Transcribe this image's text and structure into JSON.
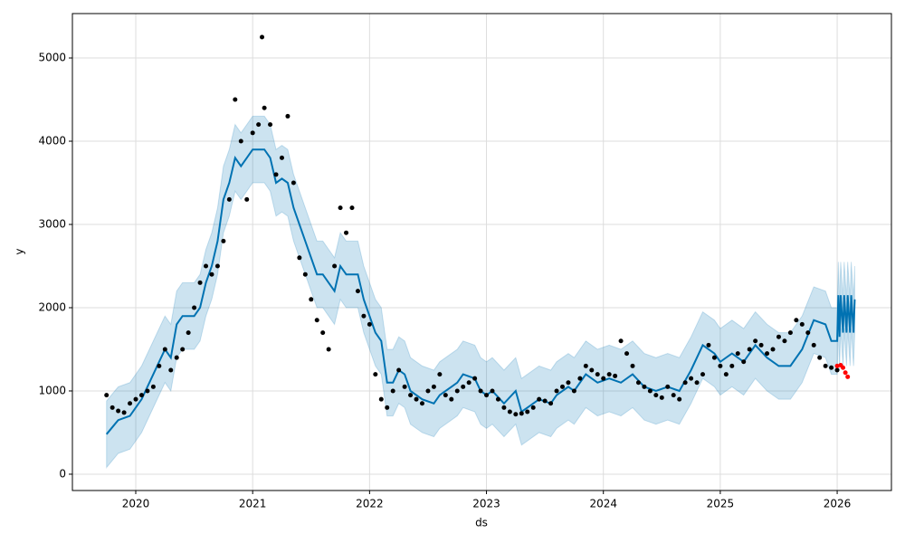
{
  "chart_data": {
    "type": "forecast",
    "x_label": "ds",
    "y_label": "y",
    "xlim": [
      2019.458,
      2026.464
    ],
    "ylim": [
      -196,
      5533
    ],
    "xticks": [
      2020,
      2021,
      2022,
      2023,
      2024,
      2025,
      2026
    ],
    "yticks": [
      0,
      1000,
      2000,
      3000,
      4000,
      5000
    ],
    "grid": true,
    "series": [
      {
        "style": "points",
        "color": "#000000",
        "x": [
          2019.75,
          2019.8,
          2019.85,
          2019.9,
          2019.95,
          2020.0,
          2020.05,
          2020.1,
          2020.15,
          2020.2,
          2020.25,
          2020.3,
          2020.35,
          2020.4,
          2020.45,
          2020.5,
          2020.55,
          2020.6,
          2020.65,
          2020.7,
          2020.75,
          2020.8,
          2020.85,
          2020.9,
          2020.95,
          2021.0,
          2021.05,
          2021.08,
          2021.1,
          2021.15,
          2021.2,
          2021.25,
          2021.3,
          2021.35,
          2021.4,
          2021.45,
          2021.5,
          2021.55,
          2021.6,
          2021.65,
          2021.7,
          2021.75,
          2021.8,
          2021.85,
          2021.9,
          2021.95,
          2022.0,
          2022.05,
          2022.1,
          2022.15,
          2022.2,
          2022.25,
          2022.3,
          2022.35,
          2022.4,
          2022.45,
          2022.5,
          2022.55,
          2022.6,
          2022.65,
          2022.7,
          2022.75,
          2022.8,
          2022.85,
          2022.9,
          2022.95,
          2023.0,
          2023.05,
          2023.1,
          2023.15,
          2023.2,
          2023.25,
          2023.3,
          2023.35,
          2023.4,
          2023.45,
          2023.5,
          2023.55,
          2023.6,
          2023.65,
          2023.7,
          2023.75,
          2023.8,
          2023.85,
          2023.9,
          2023.95,
          2024.0,
          2024.05,
          2024.1,
          2024.15,
          2024.2,
          2024.25,
          2024.3,
          2024.35,
          2024.4,
          2024.45,
          2024.5,
          2024.55,
          2024.6,
          2024.65,
          2024.7,
          2024.75,
          2024.8,
          2024.85,
          2024.9,
          2024.95,
          2025.0,
          2025.05,
          2025.1,
          2025.15,
          2025.2,
          2025.25,
          2025.3,
          2025.35,
          2025.4,
          2025.45,
          2025.5,
          2025.55,
          2025.6,
          2025.65,
          2025.7,
          2025.75,
          2025.8,
          2025.85,
          2025.9,
          2025.95,
          2026.0
        ],
        "values": [
          950,
          800,
          760,
          740,
          850,
          900,
          950,
          1000,
          1050,
          1300,
          1500,
          1250,
          1400,
          1500,
          1700,
          2000,
          2300,
          2500,
          2400,
          2500,
          2800,
          3300,
          4500,
          4000,
          3300,
          4100,
          4200,
          5250,
          4400,
          4200,
          3600,
          3800,
          4300,
          3500,
          2600,
          2400,
          2100,
          1850,
          1700,
          1500,
          2500,
          3200,
          2900,
          3200,
          2200,
          1900,
          1800,
          1200,
          900,
          800,
          1000,
          1250,
          1050,
          950,
          900,
          850,
          1000,
          1050,
          1200,
          950,
          900,
          1000,
          1050,
          1100,
          1150,
          1000,
          950,
          1000,
          900,
          800,
          750,
          720,
          730,
          750,
          800,
          900,
          880,
          850,
          1000,
          1050,
          1100,
          1000,
          1150,
          1300,
          1250,
          1200,
          1150,
          1200,
          1180,
          1600,
          1450,
          1300,
          1100,
          1050,
          1000,
          950,
          920,
          1050,
          950,
          900,
          1100,
          1150,
          1100,
          1200,
          1550,
          1400,
          1300,
          1200,
          1300,
          1450,
          1350,
          1500,
          1600,
          1550,
          1450,
          1500,
          1650,
          1600,
          1700,
          1850,
          1800,
          1700,
          1550,
          1400,
          1300,
          1280,
          1250
        ]
      },
      {
        "style": "points",
        "color": "#ff0000",
        "x": [
          2026.0,
          2026.03,
          2026.05,
          2026.07,
          2026.09
        ],
        "values": [
          1300,
          1310,
          1280,
          1220,
          1170
        ]
      },
      {
        "style": "forecast",
        "color": "#0072B2",
        "x": [
          2019.75,
          2019.85,
          2019.95,
          2020.05,
          2020.15,
          2020.25,
          2020.3,
          2020.35,
          2020.4,
          2020.5,
          2020.55,
          2020.6,
          2020.65,
          2020.7,
          2020.75,
          2020.8,
          2020.85,
          2020.9,
          2020.95,
          2021.0,
          2021.1,
          2021.15,
          2021.2,
          2021.25,
          2021.3,
          2021.35,
          2021.45,
          2021.55,
          2021.6,
          2021.65,
          2021.7,
          2021.75,
          2021.8,
          2021.9,
          2021.95,
          2022.05,
          2022.1,
          2022.15,
          2022.2,
          2022.25,
          2022.3,
          2022.35,
          2022.45,
          2022.55,
          2022.6,
          2022.7,
          2022.75,
          2022.8,
          2022.9,
          2022.95,
          2023.0,
          2023.05,
          2023.15,
          2023.25,
          2023.3,
          2023.35,
          2023.45,
          2023.55,
          2023.6,
          2023.7,
          2023.75,
          2023.85,
          2023.95,
          2024.05,
          2024.15,
          2024.25,
          2024.35,
          2024.45,
          2024.55,
          2024.65,
          2024.75,
          2024.85,
          2024.95,
          2025.0,
          2025.1,
          2025.2,
          2025.3,
          2025.4,
          2025.5,
          2025.6,
          2025.7,
          2025.8,
          2025.9,
          2025.95,
          2026.0,
          2026.01,
          2026.02,
          2026.03,
          2026.05,
          2026.06,
          2026.08,
          2026.09,
          2026.11,
          2026.12,
          2026.14,
          2026.15
        ],
        "values": [
          480,
          650,
          700,
          900,
          1200,
          1500,
          1400,
          1800,
          1900,
          1900,
          2000,
          2300,
          2500,
          2800,
          3300,
          3500,
          3800,
          3700,
          3800,
          3900,
          3900,
          3800,
          3500,
          3550,
          3500,
          3200,
          2800,
          2400,
          2400,
          2300,
          2200,
          2500,
          2400,
          2400,
          2100,
          1700,
          1600,
          1100,
          1100,
          1250,
          1200,
          1000,
          900,
          850,
          950,
          1050,
          1100,
          1200,
          1150,
          1000,
          950,
          1000,
          850,
          1000,
          750,
          800,
          900,
          850,
          950,
          1050,
          1000,
          1200,
          1100,
          1150,
          1100,
          1200,
          1050,
          1000,
          1050,
          1000,
          1250,
          1550,
          1450,
          1350,
          1450,
          1350,
          1550,
          1400,
          1300,
          1300,
          1500,
          1850,
          1800,
          1600,
          1600,
          2150,
          1650,
          2150,
          1700,
          2150,
          1700,
          2150,
          1700,
          2150,
          1700,
          2100
        ],
        "lower": [
          80,
          250,
          300,
          500,
          800,
          1100,
          1000,
          1400,
          1500,
          1500,
          1600,
          1900,
          2100,
          2400,
          2900,
          3100,
          3400,
          3300,
          3400,
          3500,
          3500,
          3400,
          3100,
          3150,
          3100,
          2800,
          2400,
          2000,
          2000,
          1900,
          1800,
          2100,
          2000,
          2000,
          1700,
          1300,
          1200,
          700,
          700,
          850,
          800,
          600,
          500,
          450,
          550,
          650,
          700,
          800,
          750,
          600,
          550,
          600,
          450,
          600,
          350,
          400,
          500,
          450,
          550,
          650,
          600,
          800,
          700,
          750,
          700,
          800,
          650,
          600,
          650,
          600,
          850,
          1150,
          1050,
          950,
          1050,
          950,
          1150,
          1000,
          900,
          900,
          1100,
          1450,
          1400,
          1200,
          1200,
          1750,
          1250,
          1750,
          1300,
          1750,
          1300,
          1750,
          1300,
          1750,
          1300,
          1700
        ],
        "upper": [
          880,
          1050,
          1100,
          1300,
          1600,
          1900,
          1800,
          2200,
          2300,
          2300,
          2400,
          2700,
          2900,
          3200,
          3700,
          3900,
          4200,
          4100,
          4200,
          4300,
          4300,
          4200,
          3900,
          3950,
          3900,
          3600,
          3200,
          2800,
          2800,
          2700,
          2600,
          2900,
          2800,
          2800,
          2500,
          2100,
          2000,
          1500,
          1500,
          1650,
          1600,
          1400,
          1300,
          1250,
          1350,
          1450,
          1500,
          1600,
          1550,
          1400,
          1350,
          1400,
          1250,
          1400,
          1150,
          1200,
          1300,
          1250,
          1350,
          1450,
          1400,
          1600,
          1500,
          1550,
          1500,
          1600,
          1450,
          1400,
          1450,
          1400,
          1650,
          1950,
          1850,
          1750,
          1850,
          1750,
          1950,
          1800,
          1700,
          1700,
          1900,
          2250,
          2200,
          2000,
          2000,
          2550,
          2050,
          2550,
          2100,
          2550,
          2100,
          2550,
          2100,
          2550,
          2100,
          2500
        ]
      }
    ]
  }
}
